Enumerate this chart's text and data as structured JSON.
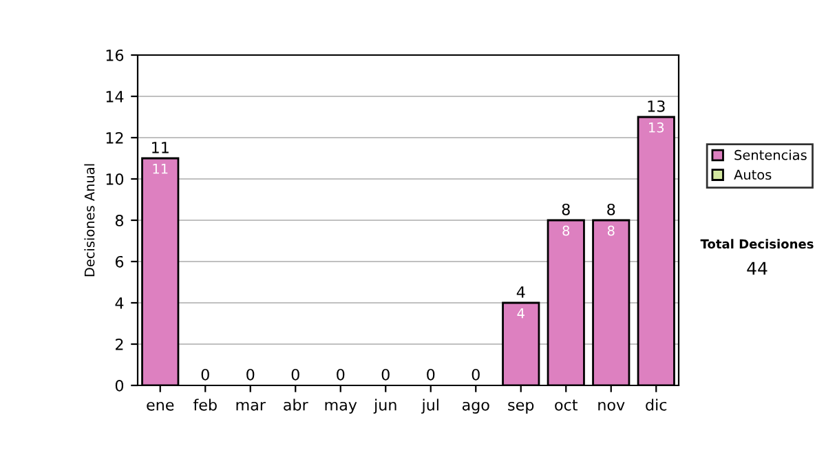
{
  "chart_data": {
    "type": "bar",
    "ylabel": "Decisiones Anual",
    "categories": [
      "ene",
      "feb",
      "mar",
      "abr",
      "may",
      "jun",
      "jul",
      "ago",
      "sep",
      "oct",
      "nov",
      "dic"
    ],
    "series": [
      {
        "name": "Sentencias",
        "color": "#dd80c0",
        "values": [
          11,
          0,
          0,
          0,
          0,
          0,
          0,
          0,
          4,
          8,
          8,
          13
        ],
        "value_labels": [
          "11",
          null,
          null,
          null,
          null,
          null,
          null,
          null,
          "4",
          "8",
          "8",
          "13"
        ]
      },
      {
        "name": "Autos",
        "color": "#d4e8a0",
        "values": [
          0,
          0,
          0,
          0,
          0,
          0,
          0,
          0,
          0,
          0,
          0,
          0
        ]
      }
    ],
    "stacked": true,
    "totals": [
      "11",
      "0",
      "0",
      "0",
      "0",
      "0",
      "0",
      "0",
      "4",
      "8",
      "8",
      "13"
    ],
    "ylim": [
      0,
      16
    ],
    "yticks": [
      0,
      2,
      4,
      6,
      8,
      10,
      12,
      14,
      16
    ],
    "grid": "y",
    "legend": "right",
    "annotations": [
      "Total Decisiones",
      "44"
    ]
  }
}
